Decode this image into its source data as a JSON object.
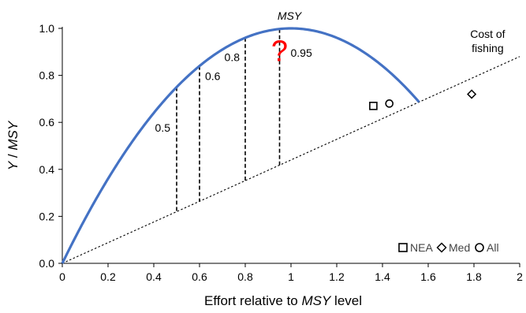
{
  "chart_data": {
    "type": "line",
    "xlabel_plain": "Effort relative to ",
    "xlabel_italic": "MSY",
    "xlabel_suffix": " level",
    "ylabel_plain": " / ",
    "ylabel_italic_y": "Y",
    "ylabel_italic_msy": "MSY",
    "xlim": [
      0,
      2
    ],
    "ylim": [
      0,
      1.0
    ],
    "x_ticks": [
      "0",
      "0.2",
      "0.4",
      "0.6",
      "0.8",
      "1",
      "1.2",
      "1.4",
      "1.6",
      "1.8",
      "2"
    ],
    "y_ticks": [
      "0.0",
      "0.2",
      "0.4",
      "0.6",
      "0.8",
      "1.0"
    ],
    "grid": false,
    "yield_curve": {
      "color": "#4472C4",
      "formula": "2E - E^2",
      "x_range": [
        0,
        1.56
      ]
    },
    "cost_line": {
      "label_line1": "Cost of",
      "label_line2": "fishing",
      "slope": 0.44,
      "x_range": [
        0,
        2
      ]
    },
    "peak_label": "MSY",
    "question_mark": "?",
    "question_color": "#FF0000",
    "effort_levels": [
      {
        "x": 0.5,
        "label": "0.5"
      },
      {
        "x": 0.6,
        "label": "0.6"
      },
      {
        "x": 0.8,
        "label": "0.8"
      },
      {
        "x": 0.95,
        "label": "0.95"
      }
    ],
    "points": [
      {
        "series": "NEA",
        "marker": "square",
        "x": 1.36,
        "y": 0.67
      },
      {
        "series": "All",
        "marker": "circle",
        "x": 1.43,
        "y": 0.68
      },
      {
        "series": "Med",
        "marker": "diamond",
        "x": 1.79,
        "y": 0.72
      }
    ],
    "legend": [
      {
        "marker": "square",
        "label": "NEA"
      },
      {
        "marker": "diamond",
        "label": "Med"
      },
      {
        "marker": "circle",
        "label": "All"
      }
    ],
    "legend_position": "bottom-right"
  }
}
